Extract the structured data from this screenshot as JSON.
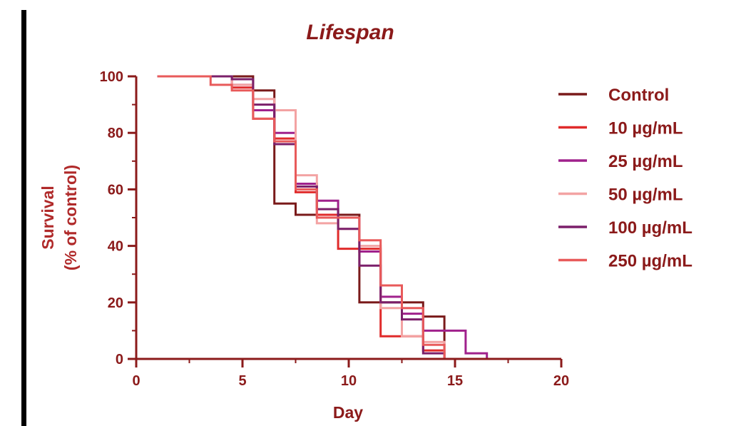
{
  "chart_data": {
    "type": "line",
    "title": "Lifespan",
    "xlabel": "Day",
    "ylabel_line1": "Survival",
    "ylabel_line2": "(% of control)",
    "xlim": [
      0,
      20
    ],
    "ylim": [
      0,
      100
    ],
    "xticks": [
      "0",
      "5",
      "10",
      "15",
      "20"
    ],
    "yticks": [
      "0",
      "20",
      "40",
      "60",
      "80",
      "100"
    ],
    "grid": false,
    "legend_position": "right",
    "axis_color": "#8b1a1a",
    "series": [
      {
        "name": "Control",
        "color": "#7a1a1a",
        "x": [
          1,
          5.5,
          6.5,
          7.5,
          9.5,
          10.5,
          11.5,
          13.5,
          14.5
        ],
        "y": [
          100,
          95,
          55,
          51,
          51,
          20,
          20,
          15,
          0
        ]
      },
      {
        "name": "10 µg/mL",
        "color": "#e02b2b",
        "x": [
          1,
          4.5,
          5.5,
          6.5,
          7.5,
          8.5,
          9.5,
          10.5,
          11.5,
          12.5,
          13.5,
          14.5
        ],
        "y": [
          100,
          96,
          85,
          78,
          59,
          51,
          39,
          39,
          8,
          8,
          3,
          0
        ]
      },
      {
        "name": "25 µg/mL",
        "color": "#a0218c",
        "x": [
          1,
          4.5,
          5.5,
          6.5,
          7.5,
          8.5,
          9.5,
          10.5,
          11.5,
          12.5,
          13.5,
          14.5,
          15.5,
          16.5
        ],
        "y": [
          100,
          97,
          88,
          80,
          62,
          56,
          50,
          38,
          22,
          16,
          10,
          10,
          2,
          0
        ]
      },
      {
        "name": "50 µg/mL",
        "color": "#f3a3a3",
        "x": [
          1,
          4.5,
          5.5,
          6.5,
          7.5,
          8.5,
          9.5,
          10.5,
          11.5,
          12.5,
          13.5,
          14.5
        ],
        "y": [
          100,
          97,
          92,
          88,
          65,
          48,
          46,
          40,
          18,
          8,
          6,
          0
        ]
      },
      {
        "name": "100 µg/mL",
        "color": "#7b1f6a",
        "x": [
          1,
          4.5,
          5.5,
          6.5,
          7.5,
          8.5,
          9.5,
          10.5,
          11.5,
          12.5,
          13.5,
          14.5
        ],
        "y": [
          100,
          99,
          90,
          76,
          61,
          53,
          46,
          33,
          20,
          14,
          2,
          0
        ]
      },
      {
        "name": "250 µg/mL",
        "color": "#e85a5a",
        "x": [
          1,
          3.5,
          4.5,
          5.5,
          6.5,
          7.5,
          8.5,
          9.5,
          10.5,
          11.5,
          12.5,
          13.5,
          14.5
        ],
        "y": [
          100,
          97,
          95,
          85,
          77,
          60,
          50,
          50,
          42,
          26,
          18,
          5,
          0
        ]
      }
    ]
  }
}
